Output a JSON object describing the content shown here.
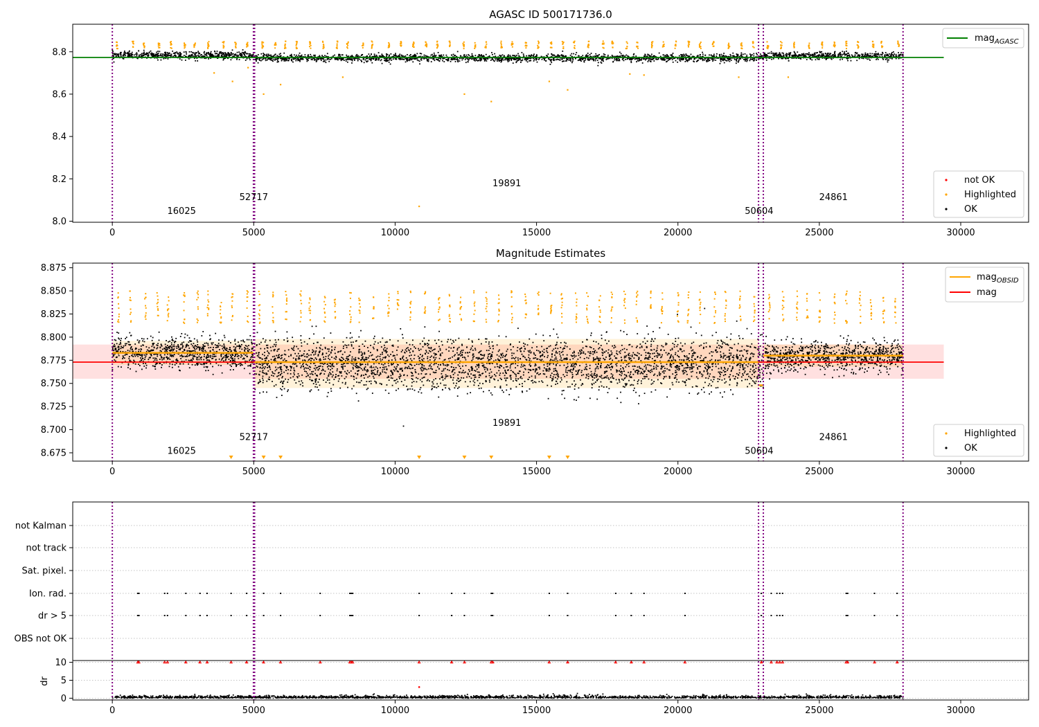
{
  "chart_data": [
    {
      "type": "scatter",
      "title": "AGASC ID 500171736.0",
      "xlim": [
        -1400,
        32400
      ],
      "ylim": [
        7.995,
        8.93
      ],
      "xticks": [
        0,
        5000,
        10000,
        15000,
        20000,
        25000,
        30000
      ],
      "xtick_labels": [
        "0",
        "5000",
        "10000",
        "15000",
        "20000",
        "25000",
        "30000"
      ],
      "yticks": [
        8.0,
        8.2,
        8.4,
        8.6,
        8.8
      ],
      "ytick_labels": [
        "8.0",
        "8.2",
        "8.4",
        "8.6",
        "8.8"
      ],
      "obs_boundaries": [
        0,
        4990,
        5030,
        22850,
        23020,
        27960
      ],
      "obsid_labels": [
        {
          "text": "16025",
          "x": 2450,
          "y": 8.035
        },
        {
          "text": "52717",
          "x": 5000,
          "y": 8.1
        },
        {
          "text": "19891",
          "x": 13950,
          "y": 8.165
        },
        {
          "text": "50604",
          "x": 22870,
          "y": 8.035
        },
        {
          "text": "24861",
          "x": 25500,
          "y": 8.1
        }
      ],
      "lines": [
        {
          "name": "mag_AGASC",
          "color": "#008000",
          "x": [
            -1400,
            29400
          ],
          "y": [
            8.773,
            8.773
          ]
        }
      ],
      "series": [
        {
          "name": "not OK",
          "color": "#ff0000"
        },
        {
          "name": "Highlighted",
          "color": "#ffa500"
        },
        {
          "name": "OK",
          "color": "#000000"
        }
      ],
      "highlighted_outliers": [
        {
          "x": 4250,
          "y": 8.66
        },
        {
          "x": 5350,
          "y": 8.6
        },
        {
          "x": 5950,
          "y": 8.645
        },
        {
          "x": 4800,
          "y": 8.725
        },
        {
          "x": 8150,
          "y": 8.68
        },
        {
          "x": 10850,
          "y": 8.07
        },
        {
          "x": 12450,
          "y": 8.6
        },
        {
          "x": 13400,
          "y": 8.565
        },
        {
          "x": 15450,
          "y": 8.66
        },
        {
          "x": 16100,
          "y": 8.62
        },
        {
          "x": 3600,
          "y": 8.7
        },
        {
          "x": 22150,
          "y": 8.68
        },
        {
          "x": 23900,
          "y": 8.68
        },
        {
          "x": 18300,
          "y": 8.695
        },
        {
          "x": 18800,
          "y": 8.69
        }
      ],
      "legend": {
        "position": "top-right",
        "entries": [
          "mag"
        ],
        "subscript": "AGASC"
      },
      "legend2": {
        "position": "lower-right",
        "entries": [
          "not OK",
          "Highlighted",
          "OK"
        ]
      }
    },
    {
      "type": "scatter",
      "title": "Magnitude Estimates",
      "xlim": [
        -1400,
        32400
      ],
      "ylim": [
        8.666,
        8.88
      ],
      "xticks": [
        0,
        5000,
        10000,
        15000,
        20000,
        25000,
        30000
      ],
      "xtick_labels": [
        "0",
        "5000",
        "10000",
        "15000",
        "20000",
        "25000",
        "30000"
      ],
      "yticks": [
        8.675,
        8.7,
        8.725,
        8.75,
        8.775,
        8.8,
        8.825,
        8.85,
        8.875
      ],
      "ytick_labels": [
        "8.675",
        "8.700",
        "8.725",
        "8.750",
        "8.775",
        "8.800",
        "8.825",
        "8.850",
        "8.875"
      ],
      "obs_boundaries": [
        0,
        4990,
        5030,
        22850,
        23020,
        27960
      ],
      "obsid_labels": [
        {
          "text": "16025",
          "x": 2450,
          "y": 8.674
        },
        {
          "text": "52717",
          "x": 5000,
          "y": 8.689
        },
        {
          "text": "19891",
          "x": 13950,
          "y": 8.704
        },
        {
          "text": "50604",
          "x": 22870,
          "y": 8.674
        },
        {
          "text": "24861",
          "x": 25500,
          "y": 8.689
        }
      ],
      "mag": {
        "name": "mag",
        "color": "#ff0000",
        "value": 8.773,
        "band": [
          8.755,
          8.792
        ],
        "x": [
          -1400,
          29400
        ]
      },
      "mag_obsid": [
        {
          "x": [
            0,
            4990
          ],
          "y": 8.783
        },
        {
          "x": [
            5030,
            22850
          ],
          "y": 8.773
        },
        {
          "x": [
            22850,
            23020
          ],
          "y": 8.748
        },
        {
          "x": [
            23020,
            27960
          ],
          "y": 8.78
        }
      ],
      "obsid_bands": [
        {
          "x": [
            0,
            4990
          ],
          "band": [
            8.77,
            8.796
          ]
        },
        {
          "x": [
            5030,
            22850
          ],
          "band": [
            8.745,
            8.798
          ]
        },
        {
          "x": [
            23020,
            27960
          ],
          "band": [
            8.768,
            8.792
          ]
        }
      ],
      "below_range_markers_x": [
        4200,
        5350,
        5950,
        10850,
        12450,
        13400,
        15450,
        16100
      ],
      "series": [
        {
          "name": "Highlighted",
          "color": "#ffa500"
        },
        {
          "name": "OK",
          "color": "#000000"
        }
      ],
      "legend": {
        "position": "top-right",
        "entries": [
          "mag",
          "mag"
        ],
        "subscript": "OBSID"
      },
      "legend2": {
        "position": "lower-right",
        "entries": [
          "Highlighted",
          "OK"
        ]
      }
    },
    {
      "type": "scatter",
      "title": "",
      "xlim": [
        -1400,
        32400
      ],
      "xticks": [
        0,
        5000,
        10000,
        15000,
        20000,
        25000,
        30000
      ],
      "xtick_labels": [
        "0",
        "5000",
        "10000",
        "15000",
        "20000",
        "25000",
        "30000"
      ],
      "flag_rows": [
        "not Kalman",
        "not track",
        "Sat. pixel.",
        "Ion. rad.",
        "dr > 5",
        "OBS not OK"
      ],
      "flag_events_x": [
        900,
        940,
        1850,
        1950,
        2600,
        3100,
        3350,
        4200,
        4750,
        5350,
        5950,
        7350,
        8400,
        8450,
        8500,
        10850,
        12000,
        12450,
        13400,
        13450,
        15450,
        16100,
        17800,
        18350,
        18800,
        20250,
        22950,
        23300,
        23500,
        23600,
        23700,
        25950,
        26000,
        26950,
        27750
      ],
      "dr": {
        "ylabel": "dr",
        "ylim": [
          -0.5,
          10.5
        ],
        "yticks": [
          0,
          5,
          10
        ],
        "ytick_labels": [
          "0",
          "5",
          "10"
        ],
        "threshold": 10,
        "outlier": {
          "x": 10850,
          "y": 3.1
        }
      },
      "obs_boundaries": [
        0,
        4990,
        5030,
        22850,
        23020,
        27960
      ]
    }
  ]
}
